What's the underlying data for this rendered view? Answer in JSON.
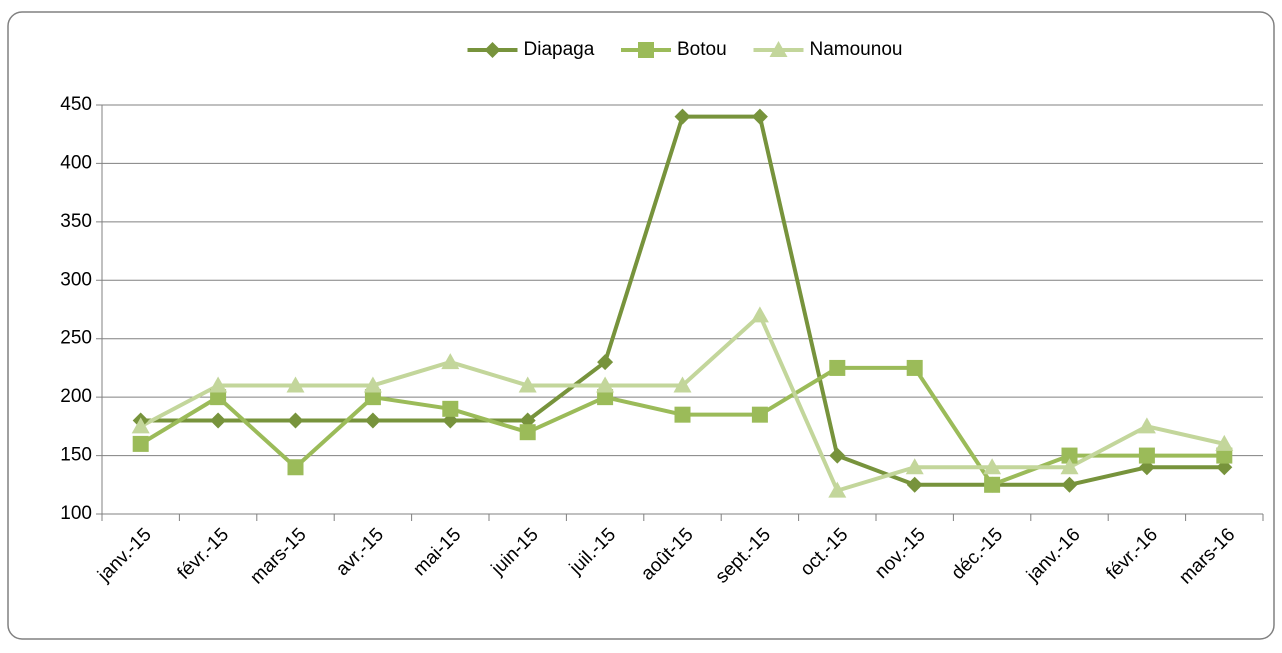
{
  "chart_data": {
    "type": "line",
    "categories": [
      "janv.-15",
      "févr.-15",
      "mars-15",
      "avr.-15",
      "mai-15",
      "juin-15",
      "juil.-15",
      "août-15",
      "sept.-15",
      "oct.-15",
      "nov.-15",
      "déc.-15",
      "janv.-16",
      "févr.-16",
      "mars-16"
    ],
    "series": [
      {
        "name": "Diapaga",
        "color": "#77933c",
        "marker": "diamond",
        "values": [
          180,
          180,
          180,
          180,
          180,
          180,
          230,
          440,
          440,
          150,
          125,
          125,
          125,
          140,
          140
        ]
      },
      {
        "name": "Botou",
        "color": "#9bbb59",
        "marker": "square",
        "values": [
          160,
          200,
          140,
          200,
          190,
          170,
          200,
          185,
          185,
          225,
          225,
          125,
          150,
          150,
          150
        ]
      },
      {
        "name": "Namounou",
        "color": "#c3d69b",
        "marker": "triangle",
        "values": [
          175,
          210,
          210,
          210,
          230,
          210,
          210,
          210,
          270,
          120,
          140,
          140,
          140,
          175,
          160
        ]
      }
    ],
    "ylim": [
      100,
      450
    ],
    "yticks": [
      100,
      150,
      200,
      250,
      300,
      350,
      400,
      450
    ],
    "grid": true,
    "legend": "top"
  }
}
